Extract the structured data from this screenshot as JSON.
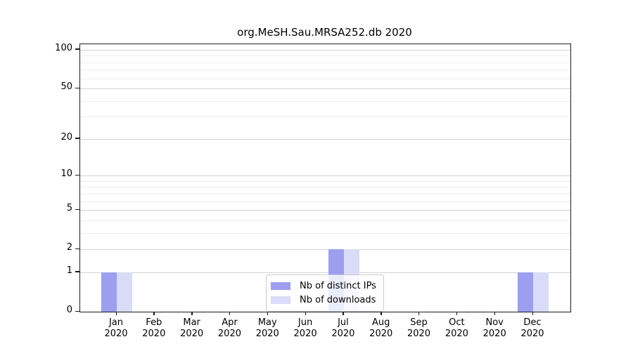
{
  "chart_data": {
    "type": "bar",
    "title": "org.MeSH.Sau.MRSA252.db 2020",
    "categories": [
      "Jan",
      "Feb",
      "Mar",
      "Apr",
      "May",
      "Jun",
      "Jul",
      "Aug",
      "Sep",
      "Oct",
      "Nov",
      "Dec"
    ],
    "category_year": "2020",
    "series": [
      {
        "name": "Nb of distinct IPs",
        "color": "#9d9eef",
        "values": [
          1,
          0,
          0,
          0,
          0,
          0,
          2,
          0,
          0,
          0,
          0,
          1
        ]
      },
      {
        "name": "Nb of downloads",
        "color": "#dadbf8",
        "values": [
          1,
          0,
          0,
          0,
          0,
          0,
          2,
          0,
          0,
          0,
          0,
          1
        ]
      }
    ],
    "xlabel": "",
    "ylabel": "",
    "yscale": "log1p",
    "ylim": [
      0,
      111
    ],
    "ytick_values": [
      0,
      1,
      2,
      5,
      10,
      20,
      50,
      100
    ],
    "gridline_values": [
      1,
      2,
      3,
      4,
      5,
      6,
      7,
      8,
      9,
      10,
      20,
      30,
      40,
      50,
      60,
      70,
      80,
      90,
      100
    ],
    "grid": "horizontal",
    "legend_position": "inside-bottom-center"
  },
  "legend": {
    "items": [
      {
        "label": "Nb of distinct IPs",
        "color": "#9d9eef"
      },
      {
        "label": "Nb of downloads",
        "color": "#dadbf8"
      }
    ]
  }
}
